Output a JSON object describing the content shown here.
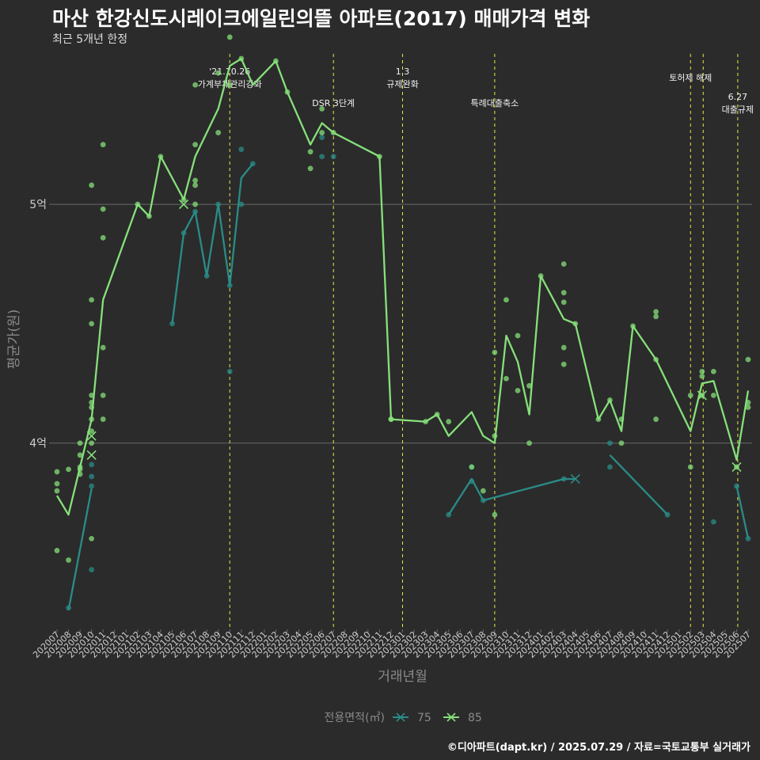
{
  "title": "마산 한강신도시레이크에일린의뜰 아파트(2017) 매매가격 변화",
  "subtitle": "최근 5개년 한정",
  "caption": "©디아파트(dapt.kr) / 2025.07.29 / 자료=국토교통부 실거래가",
  "colors": {
    "s75": "#2a8c87",
    "s85": "#86e07a",
    "event": "#e8e84a",
    "grid": "#6a6a6a",
    "axisText": "#cfcfcf",
    "axisTitle": "#8a8a8a"
  },
  "chart_data": {
    "type": "line",
    "xlabel": "거래년월",
    "ylabel": "평균가(원)",
    "ylim": [
      3.22,
      5.65
    ],
    "yticks": [
      {
        "value": 4,
        "label": "4억"
      },
      {
        "value": 5,
        "label": "5억"
      }
    ],
    "categories": [
      "202007",
      "202008",
      "202009",
      "202010",
      "202011",
      "202012",
      "202101",
      "202102",
      "202103",
      "202104",
      "202105",
      "202106",
      "202107",
      "202108",
      "202109",
      "202110",
      "202111",
      "202112",
      "202201",
      "202202",
      "202203",
      "202204",
      "202205",
      "202206",
      "202207",
      "202208",
      "202209",
      "202210",
      "202211",
      "202212",
      "202301",
      "202302",
      "202303",
      "202304",
      "202305",
      "202306",
      "202307",
      "202308",
      "202309",
      "202310",
      "202311",
      "202312",
      "202401",
      "202402",
      "202403",
      "202404",
      "202405",
      "202406",
      "202407",
      "202408",
      "202409",
      "202410",
      "202411",
      "202412",
      "202501",
      "202502",
      "202503",
      "202504",
      "202505",
      "202506",
      "202507"
    ],
    "legend": {
      "title": "전용면적(㎡)",
      "position": "bottom",
      "items": [
        "75",
        "85"
      ]
    },
    "series": [
      {
        "name": "75",
        "line": [
          [
            10,
            null
          ],
          [
            11,
            null
          ],
          [
            12,
            null
          ],
          [
            13,
            null
          ],
          [
            14,
            null
          ],
          [
            15,
            null
          ],
          [
            16,
            null
          ],
          [
            17,
            null
          ],
          [
            18,
            null
          ],
          [
            19,
            null
          ],
          [
            20,
            null
          ],
          [
            21,
            null
          ],
          [
            22,
            null
          ],
          [
            23,
            null
          ],
          [
            24,
            null
          ],
          [
            25,
            null
          ],
          [
            26,
            null
          ],
          [
            27,
            null
          ],
          [
            28,
            null
          ],
          [
            29,
            null
          ],
          [
            30,
            null
          ]
        ],
        "segments": [
          [
            [
              1,
              3.3
            ],
            [
              3,
              3.81
            ]
          ],
          [
            [
              10,
              4.5
            ],
            [
              11,
              4.88
            ],
            [
              12,
              4.97
            ],
            [
              13,
              4.7
            ],
            [
              14,
              5.0
            ],
            [
              15,
              4.66
            ],
            [
              16,
              5.11
            ],
            [
              17,
              5.17
            ]
          ],
          [
            [
              34,
              3.7
            ],
            [
              36,
              3.85
            ],
            [
              37,
              3.76
            ],
            [
              44,
              3.85
            ],
            [
              45,
              3.85
            ]
          ],
          [
            [
              48,
              3.95
            ],
            [
              53,
              3.7
            ]
          ],
          [
            [
              59,
              3.82
            ],
            [
              60,
              3.6
            ]
          ]
        ],
        "points": [
          [
            1,
            3.31
          ],
          [
            3,
            3.86
          ],
          [
            3,
            3.82
          ],
          [
            3,
            3.91
          ],
          [
            3,
            3.47
          ],
          [
            10,
            4.5
          ],
          [
            11,
            4.88
          ],
          [
            12,
            4.97
          ],
          [
            13,
            4.7
          ],
          [
            14,
            5.0
          ],
          [
            15,
            4.66
          ],
          [
            15,
            4.3
          ],
          [
            16,
            5.23
          ],
          [
            16,
            5.0
          ],
          [
            17,
            5.17
          ],
          [
            23,
            5.28
          ],
          [
            23,
            5.2
          ],
          [
            24,
            5.2
          ],
          [
            34,
            3.7
          ],
          [
            36,
            3.9
          ],
          [
            36,
            3.84
          ],
          [
            37,
            3.76
          ],
          [
            44,
            3.85
          ],
          [
            48,
            4.0
          ],
          [
            48,
            3.9
          ],
          [
            53,
            3.7
          ],
          [
            57,
            3.67
          ],
          [
            59,
            3.82
          ],
          [
            60,
            3.6
          ]
        ],
        "crosses": [
          [
            45,
            3.85
          ]
        ]
      },
      {
        "name": "85",
        "segments": [
          [
            [
              0,
              3.78
            ],
            [
              1,
              3.7
            ],
            [
              3,
              4.1
            ],
            [
              4,
              4.6
            ],
            [
              7,
              5.0
            ],
            [
              8,
              4.95
            ],
            [
              9,
              5.2
            ],
            [
              11,
              5.02
            ],
            [
              12,
              5.2
            ],
            [
              14,
              5.4
            ],
            [
              15,
              5.58
            ],
            [
              16,
              5.61
            ],
            [
              17,
              5.5
            ],
            [
              19,
              5.6
            ],
            [
              20,
              5.47
            ],
            [
              22,
              5.25
            ],
            [
              23,
              5.34
            ],
            [
              24,
              5.3
            ],
            [
              28,
              5.2
            ],
            [
              29,
              4.1
            ],
            [
              32,
              4.09
            ],
            [
              33,
              4.12
            ],
            [
              34,
              4.03
            ],
            [
              36,
              4.13
            ],
            [
              37,
              4.03
            ],
            [
              38,
              4.0
            ],
            [
              39,
              4.45
            ],
            [
              40,
              4.34
            ],
            [
              41,
              4.12
            ],
            [
              42,
              4.7
            ],
            [
              44,
              4.52
            ],
            [
              45,
              4.5
            ],
            [
              47,
              4.1
            ],
            [
              48,
              4.18
            ],
            [
              49,
              4.05
            ],
            [
              50,
              4.49
            ],
            [
              52,
              4.35
            ],
            [
              55,
              4.05
            ],
            [
              56,
              4.25
            ],
            [
              57,
              4.26
            ],
            [
              59,
              3.93
            ],
            [
              60,
              4.22
            ]
          ]
        ],
        "points": [
          [
            0,
            3.88
          ],
          [
            0,
            3.83
          ],
          [
            0,
            3.8
          ],
          [
            0,
            3.55
          ],
          [
            1,
            3.89
          ],
          [
            1,
            3.51
          ],
          [
            2,
            4.0
          ],
          [
            2,
            3.95
          ],
          [
            2,
            3.89
          ],
          [
            2,
            3.87
          ],
          [
            2,
            3.9
          ],
          [
            3,
            4.2
          ],
          [
            3,
            4.15
          ],
          [
            3,
            4.1
          ],
          [
            3,
            4.05
          ],
          [
            3,
            4.0
          ],
          [
            3,
            4.6
          ],
          [
            3,
            4.5
          ],
          [
            3,
            4.17
          ],
          [
            3,
            5.08
          ],
          [
            3,
            3.6
          ],
          [
            4,
            4.4
          ],
          [
            4,
            4.86
          ],
          [
            4,
            4.98
          ],
          [
            4,
            5.25
          ],
          [
            4,
            4.2
          ],
          [
            4,
            4.1
          ],
          [
            7,
            5.0
          ],
          [
            8,
            4.95
          ],
          [
            9,
            5.2
          ],
          [
            11,
            5.02
          ],
          [
            12,
            5.5
          ],
          [
            12,
            5.25
          ],
          [
            12,
            5.1
          ],
          [
            12,
            5.0
          ],
          [
            12,
            5.08
          ],
          [
            14,
            5.55
          ],
          [
            14,
            5.3
          ],
          [
            15,
            5.7
          ],
          [
            15,
            5.5
          ],
          [
            16,
            5.61
          ],
          [
            19,
            5.6
          ],
          [
            20,
            5.47
          ],
          [
            22,
            5.15
          ],
          [
            22,
            5.22
          ],
          [
            23,
            5.4
          ],
          [
            23,
            5.3
          ],
          [
            24,
            5.3
          ],
          [
            28,
            5.2
          ],
          [
            29,
            4.1
          ],
          [
            32,
            4.09
          ],
          [
            33,
            4.12
          ],
          [
            34,
            4.09
          ],
          [
            36,
            3.9
          ],
          [
            37,
            3.8
          ],
          [
            38,
            4.38
          ],
          [
            38,
            3.7
          ],
          [
            38,
            4.03
          ],
          [
            39,
            4.6
          ],
          [
            39,
            4.27
          ],
          [
            40,
            4.22
          ],
          [
            40,
            4.45
          ],
          [
            41,
            4.24
          ],
          [
            41,
            4.0
          ],
          [
            42,
            4.7
          ],
          [
            44,
            4.75
          ],
          [
            44,
            4.63
          ],
          [
            44,
            4.59
          ],
          [
            44,
            4.4
          ],
          [
            44,
            4.33
          ],
          [
            45,
            4.5
          ],
          [
            47,
            4.1
          ],
          [
            48,
            4.18
          ],
          [
            49,
            4.1
          ],
          [
            49,
            4.0
          ],
          [
            50,
            4.49
          ],
          [
            52,
            4.53
          ],
          [
            52,
            4.55
          ],
          [
            52,
            4.35
          ],
          [
            52,
            4.1
          ],
          [
            56,
            4.28
          ],
          [
            56,
            4.3
          ],
          [
            56,
            4.2
          ],
          [
            57,
            4.3
          ],
          [
            57,
            4.2
          ],
          [
            59,
            3.9
          ],
          [
            60,
            4.35
          ],
          [
            60,
            4.17
          ],
          [
            60,
            4.15
          ],
          [
            29,
            4.1
          ],
          [
            55,
            4.2
          ],
          [
            55,
            3.9
          ]
        ],
        "crosses": [
          [
            3,
            4.03
          ],
          [
            3,
            3.95
          ],
          [
            11,
            5.0
          ],
          [
            56,
            4.2
          ],
          [
            59,
            3.9
          ]
        ]
      }
    ],
    "events": [
      {
        "x": 15.0,
        "label": "'21.10.26\n가계부채관리강화"
      },
      {
        "x": 24.0,
        "label": "DSR 3단계"
      },
      {
        "x": 30.0,
        "label": "1.3\n규제완화"
      },
      {
        "x": 38.0,
        "label": "특례대출축소"
      },
      {
        "x": 55.0,
        "label": "토허제 해제"
      },
      {
        "x": 56.1,
        "label": ""
      },
      {
        "x": 59.1,
        "label": "6.27\n대출규제"
      }
    ]
  }
}
